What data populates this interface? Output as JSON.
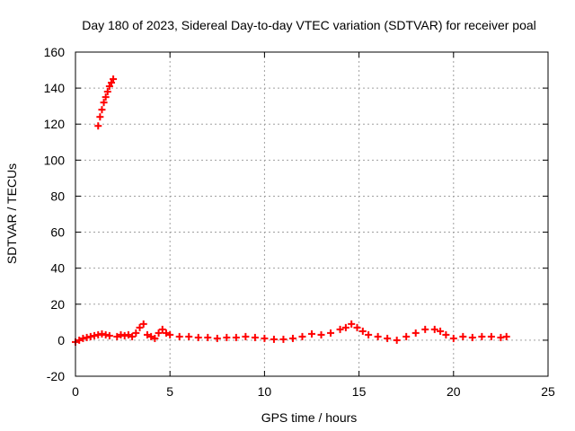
{
  "chart_data": {
    "type": "scatter",
    "title": "Day 180 of 2023, Sidereal Day-to-day VTEC variation (SDTVAR) for receiver poal",
    "xlabel": "GPS time / hours",
    "ylabel": "SDTVAR / TECUs",
    "xlim": [
      0,
      25
    ],
    "ylim": [
      -20,
      160
    ],
    "x_ticks": [
      0,
      5,
      10,
      15,
      20,
      25
    ],
    "y_ticks": [
      -20,
      0,
      20,
      40,
      60,
      80,
      100,
      120,
      140,
      160
    ],
    "x_tick_labels": [
      "0",
      "5",
      "10",
      "15",
      "20",
      "25"
    ],
    "y_tick_labels": [
      "-20",
      "0",
      "20",
      "40",
      "60",
      "80",
      "100",
      "120",
      "140",
      "160"
    ],
    "grid": true,
    "marker": "plus",
    "color": "#ff0000",
    "series": [
      {
        "name": "",
        "points": [
          [
            1.2,
            119
          ],
          [
            1.3,
            124
          ],
          [
            1.4,
            128
          ],
          [
            1.5,
            132
          ],
          [
            1.6,
            135
          ],
          [
            1.7,
            138
          ],
          [
            1.8,
            141
          ],
          [
            1.9,
            143
          ],
          [
            2.0,
            145
          ],
          [
            0.0,
            -1
          ],
          [
            0.2,
            0
          ],
          [
            0.4,
            1
          ],
          [
            0.6,
            1.5
          ],
          [
            0.8,
            2
          ],
          [
            1.0,
            2.5
          ],
          [
            1.2,
            3
          ],
          [
            1.4,
            3.5
          ],
          [
            1.6,
            3
          ],
          [
            1.8,
            2.5
          ],
          [
            2.2,
            2
          ],
          [
            2.4,
            3
          ],
          [
            2.6,
            2.5
          ],
          [
            2.8,
            3
          ],
          [
            3.0,
            2
          ],
          [
            3.2,
            4
          ],
          [
            3.4,
            7
          ],
          [
            3.6,
            9
          ],
          [
            3.8,
            3
          ],
          [
            4.0,
            2
          ],
          [
            4.2,
            1
          ],
          [
            4.4,
            4
          ],
          [
            4.6,
            6
          ],
          [
            4.8,
            4
          ],
          [
            5.0,
            3
          ],
          [
            5.5,
            2
          ],
          [
            6.0,
            2
          ],
          [
            6.5,
            1.5
          ],
          [
            7.0,
            1.5
          ],
          [
            7.5,
            1
          ],
          [
            8.0,
            1.5
          ],
          [
            8.5,
            1.5
          ],
          [
            9.0,
            2
          ],
          [
            9.5,
            1.5
          ],
          [
            10.0,
            1
          ],
          [
            10.5,
            0.5
          ],
          [
            11.0,
            0.5
          ],
          [
            11.5,
            1
          ],
          [
            12.0,
            2
          ],
          [
            12.5,
            3.5
          ],
          [
            13.0,
            3
          ],
          [
            13.5,
            4
          ],
          [
            14.0,
            6
          ],
          [
            14.3,
            7
          ],
          [
            14.6,
            9
          ],
          [
            14.9,
            7
          ],
          [
            15.2,
            5
          ],
          [
            15.5,
            3
          ],
          [
            16.0,
            2
          ],
          [
            16.5,
            1
          ],
          [
            17.0,
            0
          ],
          [
            17.5,
            2
          ],
          [
            18.0,
            4
          ],
          [
            18.5,
            6
          ],
          [
            19.0,
            6
          ],
          [
            19.3,
            5
          ],
          [
            19.6,
            3
          ],
          [
            20.0,
            1
          ],
          [
            20.5,
            2
          ],
          [
            21.0,
            1.5
          ],
          [
            21.5,
            2
          ],
          [
            22.0,
            2
          ],
          [
            22.5,
            1.5
          ],
          [
            22.8,
            2
          ]
        ]
      }
    ]
  }
}
